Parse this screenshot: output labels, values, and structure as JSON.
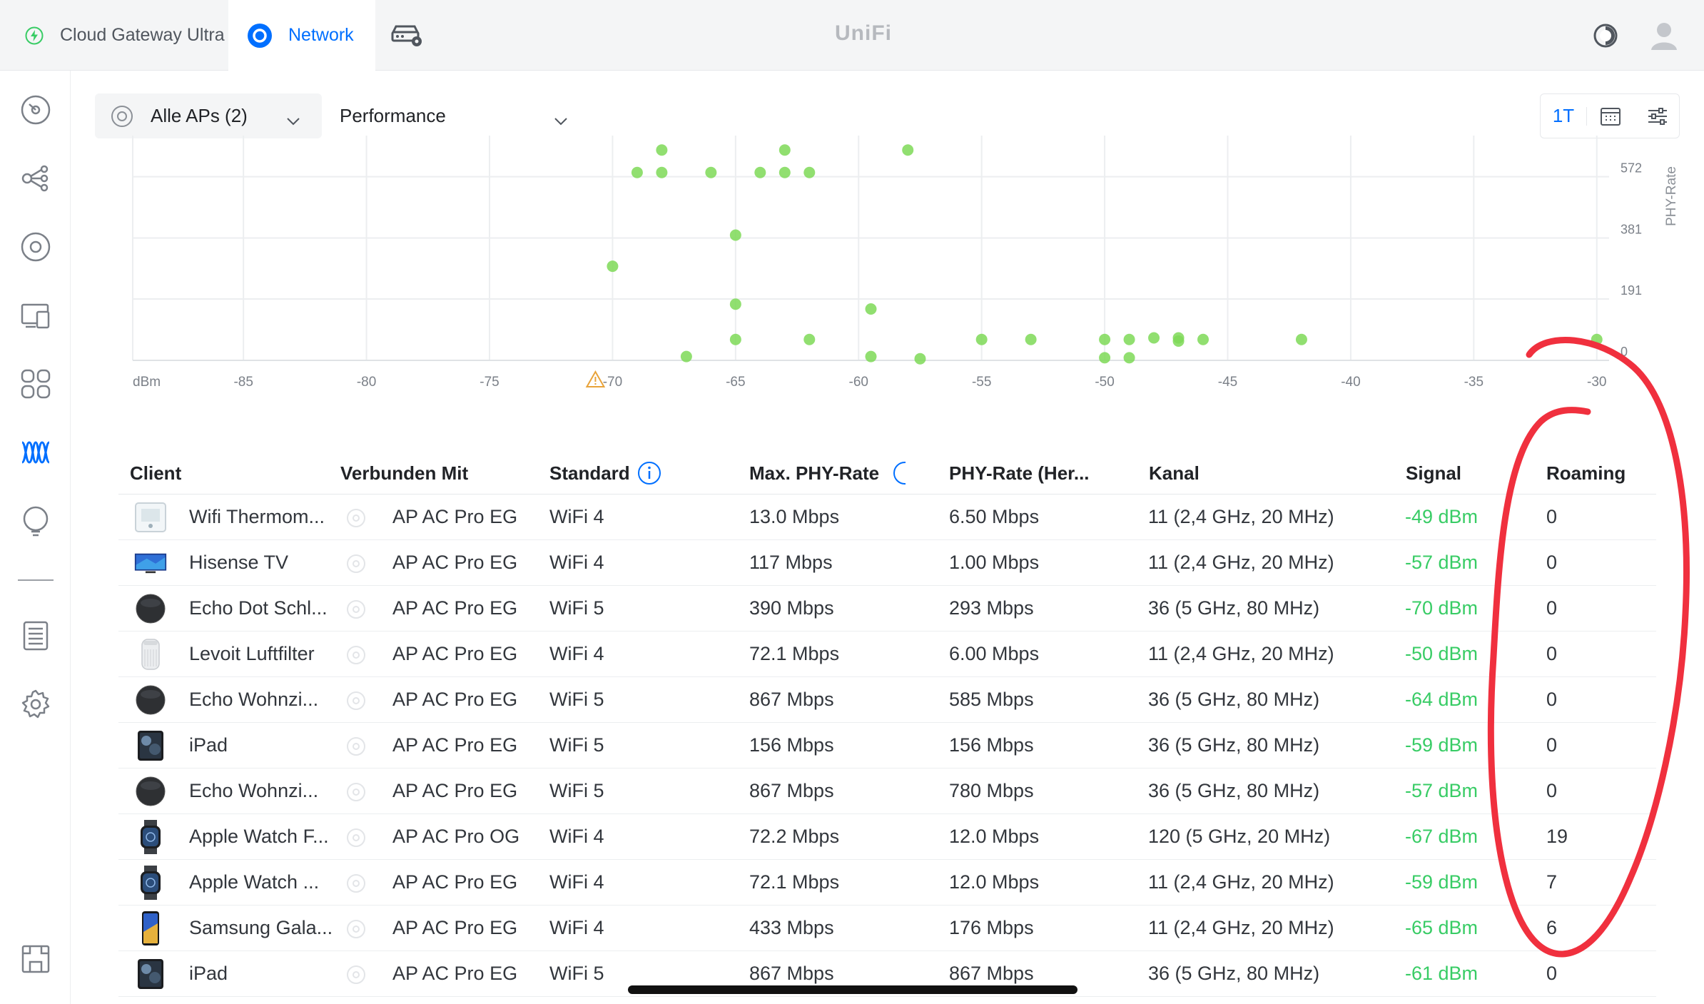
{
  "topbar": {
    "tabs": [
      {
        "label": "Cloud Gateway Ultra",
        "icon": "bolt-circle-icon"
      },
      {
        "label": "Network",
        "icon": "network-ring-icon",
        "active": true
      },
      {
        "label": "",
        "icon": "gateway-settings-icon"
      }
    ],
    "brand": "UniFi",
    "right_icons": [
      "theme-icon",
      "user-avatar-icon"
    ]
  },
  "sidebar": {
    "items": [
      "dashboard-icon",
      "topology-icon",
      "devices-icon",
      "clients-icon",
      "applications-icon",
      "insights-icon",
      "notifications-icon",
      "logs-icon",
      "settings-icon",
      "layout-icon"
    ],
    "active": "insights-icon"
  },
  "filters": {
    "ap_select": "Alle APs (2)",
    "metric_select": "Performance",
    "time_range": "1T"
  },
  "chart_data": {
    "type": "scatter",
    "xlabel": "dBm",
    "ylabel": "PHY-Rate",
    "x_ticks": [
      "dBm",
      "-85",
      "-80",
      "-75",
      "-70",
      "-65",
      "-60",
      "-55",
      "-50",
      "-45",
      "-40",
      "-35",
      "-30"
    ],
    "y_ticks": [
      "572",
      "381",
      "191",
      "0"
    ],
    "warning_tick": "-70",
    "xlim": [
      -89.5,
      -29.5
    ],
    "ylim": [
      0,
      700
    ],
    "grid": true,
    "point_color": "#7ed957",
    "points": [
      [
        -68,
        655
      ],
      [
        -63,
        655
      ],
      [
        -58,
        655
      ],
      [
        -69,
        585
      ],
      [
        -68,
        585
      ],
      [
        -66,
        585
      ],
      [
        -64,
        585
      ],
      [
        -63,
        585
      ],
      [
        -62,
        585
      ],
      [
        -65,
        390
      ],
      [
        -70,
        293
      ],
      [
        -65,
        175
      ],
      [
        -59.5,
        160
      ],
      [
        -65,
        65
      ],
      [
        -62,
        65
      ],
      [
        -55,
        65
      ],
      [
        -53,
        65
      ],
      [
        -50,
        65
      ],
      [
        -49,
        65
      ],
      [
        -48,
        70
      ],
      [
        -47,
        70
      ],
      [
        -47,
        60
      ],
      [
        -46,
        65
      ],
      [
        -42,
        65
      ],
      [
        -30,
        65
      ],
      [
        -67,
        12
      ],
      [
        -59.5,
        12
      ],
      [
        -57.5,
        5
      ],
      [
        -50,
        8
      ],
      [
        -49,
        8
      ]
    ]
  },
  "table": {
    "columns": [
      "Client",
      "Verbunden Mit",
      "Standard",
      "Max. PHY-Rate",
      "PHY-Rate (Her...",
      "Kanal",
      "Signal",
      "Roaming"
    ],
    "rows": [
      {
        "client": "Wifi Thermom...",
        "thumb": "thermometer-icon",
        "ap": "AP AC Pro EG",
        "standard": "WiFi 4",
        "max_rate": "13.0 Mbps",
        "rate": "6.50 Mbps",
        "channel": "11 (2,4 GHz, 20 MHz)",
        "signal": "-49 dBm",
        "roaming": "0"
      },
      {
        "client": "Hisense TV",
        "thumb": "tv-icon",
        "ap": "AP AC Pro EG",
        "standard": "WiFi 4",
        "max_rate": "117 Mbps",
        "rate": "1.00 Mbps",
        "channel": "11 (2,4 GHz, 20 MHz)",
        "signal": "-57 dBm",
        "roaming": "0"
      },
      {
        "client": "Echo Dot Schl...",
        "thumb": "smart-speaker-icon",
        "ap": "AP AC Pro EG",
        "standard": "WiFi 5",
        "max_rate": "390 Mbps",
        "rate": "293 Mbps",
        "channel": "36 (5 GHz, 80 MHz)",
        "signal": "-70 dBm",
        "roaming": "0"
      },
      {
        "client": "Levoit Luftfilter",
        "thumb": "air-purifier-icon",
        "ap": "AP AC Pro EG",
        "standard": "WiFi 4",
        "max_rate": "72.1 Mbps",
        "rate": "6.00 Mbps",
        "channel": "11 (2,4 GHz, 20 MHz)",
        "signal": "-50 dBm",
        "roaming": "0"
      },
      {
        "client": "Echo Wohnzi...",
        "thumb": "smart-speaker-icon",
        "ap": "AP AC Pro EG",
        "standard": "WiFi 5",
        "max_rate": "867 Mbps",
        "rate": "585 Mbps",
        "channel": "36 (5 GHz, 80 MHz)",
        "signal": "-64 dBm",
        "roaming": "0"
      },
      {
        "client": "iPad",
        "thumb": "tablet-icon",
        "ap": "AP AC Pro EG",
        "standard": "WiFi 5",
        "max_rate": "156 Mbps",
        "rate": "156 Mbps",
        "channel": "36 (5 GHz, 80 MHz)",
        "signal": "-59 dBm",
        "roaming": "0"
      },
      {
        "client": "Echo Wohnzi...",
        "thumb": "smart-speaker-icon",
        "ap": "AP AC Pro EG",
        "standard": "WiFi 5",
        "max_rate": "867 Mbps",
        "rate": "780 Mbps",
        "channel": "36 (5 GHz, 80 MHz)",
        "signal": "-57 dBm",
        "roaming": "0"
      },
      {
        "client": "Apple Watch F...",
        "thumb": "smartwatch-icon",
        "ap": "AP AC Pro OG",
        "standard": "WiFi 4",
        "max_rate": "72.2 Mbps",
        "rate": "12.0 Mbps",
        "channel": "120 (5 GHz, 20 MHz)",
        "signal": "-67 dBm",
        "roaming": "19"
      },
      {
        "client": "Apple Watch ...",
        "thumb": "smartwatch-icon",
        "ap": "AP AC Pro EG",
        "standard": "WiFi 4",
        "max_rate": "72.1 Mbps",
        "rate": "12.0 Mbps",
        "channel": "11 (2,4 GHz, 20 MHz)",
        "signal": "-59 dBm",
        "roaming": "7"
      },
      {
        "client": "Samsung Gala...",
        "thumb": "smartphone-icon",
        "ap": "AP AC Pro EG",
        "standard": "WiFi 4",
        "max_rate": "433 Mbps",
        "rate": "176 Mbps",
        "channel": "11 (2,4 GHz, 20 MHz)",
        "signal": "-65 dBm",
        "roaming": "6"
      },
      {
        "client": "iPad",
        "thumb": "tablet-icon",
        "ap": "AP AC Pro EG",
        "standard": "WiFi 5",
        "max_rate": "867 Mbps",
        "rate": "867 Mbps",
        "channel": "36 (5 GHz, 80 MHz)",
        "signal": "-61 dBm",
        "roaming": "0"
      }
    ]
  },
  "colors": {
    "accent": "#006fff",
    "signal": "#38cc65",
    "annotation": "#f0303e"
  }
}
